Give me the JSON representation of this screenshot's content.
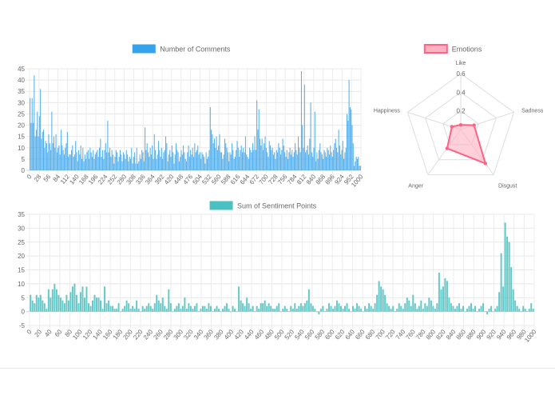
{
  "chart_data": [
    {
      "type": "bar",
      "legend": {
        "label": "Number of Comments",
        "color": "#36a2eb",
        "fill": "#9ad0f5",
        "placement": "top-center"
      },
      "x_ticks": [
        "0",
        "28",
        "56",
        "84",
        "112",
        "140",
        "168",
        "196",
        "224",
        "252",
        "280",
        "308",
        "336",
        "364",
        "392",
        "420",
        "448",
        "476",
        "504",
        "532",
        "560",
        "588",
        "616",
        "644",
        "672",
        "700",
        "728",
        "756",
        "784",
        "812",
        "840",
        "868",
        "896",
        "924",
        "952",
        "1000"
      ],
      "ylim": [
        0,
        45
      ],
      "y_ticks": [
        "0",
        "5",
        "10",
        "15",
        "20",
        "25",
        "30",
        "35",
        "40",
        "45"
      ],
      "grid": true,
      "values": [
        32,
        21,
        32,
        21,
        42,
        15,
        18,
        26,
        15,
        24,
        36,
        14,
        17,
        18,
        10,
        13,
        12,
        8,
        16,
        12,
        9,
        26,
        12,
        15,
        10,
        16,
        8,
        10,
        11,
        7,
        18,
        11,
        9,
        7,
        10,
        12,
        17,
        6,
        7,
        7,
        9,
        11,
        6,
        7,
        13,
        8,
        4,
        9,
        7,
        11,
        5,
        10,
        4,
        7,
        5,
        8,
        9,
        5,
        10,
        8,
        6,
        9,
        5,
        7,
        8,
        9,
        6,
        10,
        14,
        6,
        9,
        5,
        9,
        12,
        8,
        22,
        8,
        10,
        6,
        9,
        7,
        3,
        6,
        9,
        8,
        4,
        6,
        9,
        7,
        4,
        8,
        7,
        5,
        9,
        7,
        4,
        6,
        5,
        10,
        3,
        6,
        8,
        3,
        10,
        3,
        4,
        7,
        5,
        9,
        8,
        4,
        19,
        9,
        12,
        8,
        6,
        10,
        7,
        11,
        5,
        16,
        9,
        5,
        7,
        13,
        9,
        6,
        10,
        5,
        8,
        9,
        15,
        12,
        4,
        7,
        9,
        6,
        11,
        8,
        3,
        7,
        12,
        9,
        8,
        4,
        6,
        9,
        7,
        11,
        8,
        5,
        4,
        8,
        11,
        6,
        9,
        7,
        10,
        6,
        12,
        8,
        9,
        11,
        7,
        8,
        5,
        8,
        7,
        6,
        3,
        8,
        5,
        6,
        9,
        28,
        18,
        16,
        12,
        14,
        10,
        15,
        9,
        11,
        16,
        8,
        8,
        5,
        7,
        14,
        12,
        10,
        8,
        4,
        8,
        7,
        12,
        9,
        5,
        6,
        9,
        13,
        10,
        6,
        9,
        11,
        8,
        10,
        8,
        15,
        7,
        6,
        5,
        10,
        9,
        8,
        12,
        9,
        15,
        9,
        31,
        18,
        27,
        14,
        11,
        14,
        9,
        12,
        15,
        10,
        8,
        6,
        13,
        11,
        9,
        10,
        7,
        8,
        5,
        9,
        8,
        12,
        10,
        7,
        9,
        14,
        11,
        8,
        6,
        9,
        5,
        8,
        10,
        7,
        9,
        6,
        8,
        12,
        9,
        7,
        15,
        10,
        8,
        44,
        20,
        10,
        38,
        8,
        9,
        11,
        7,
        14,
        30,
        8,
        6,
        10,
        26,
        4,
        8,
        5,
        9,
        12,
        8,
        7,
        5,
        9,
        8,
        6,
        10,
        9,
        7,
        11,
        8,
        6,
        9,
        12,
        14,
        10,
        8,
        18,
        11,
        7,
        9,
        13,
        5,
        8,
        10,
        25,
        22,
        40,
        28,
        27,
        20,
        12,
        2,
        4,
        6,
        5,
        6,
        2,
        2
      ]
    },
    {
      "type": "radar",
      "legend": {
        "label": "Emotions",
        "color": "#ff6384",
        "fill": "#ffb1c1",
        "placement": "top-center"
      },
      "axes": [
        "Like",
        "Sadness",
        "Disgust",
        "Anger",
        "Happiness"
      ],
      "values": [
        0.05,
        0.15,
        0.45,
        0.25,
        0.1
      ],
      "rmax": 0.6,
      "r_ticks": [
        "0.2",
        "0.4",
        "0.6"
      ]
    },
    {
      "type": "bar",
      "legend": {
        "label": "Sum of Sentiment Points",
        "color": "#4bc0c0",
        "fill": "#a5dfdf",
        "placement": "top-center"
      },
      "x_ticks": [
        "0",
        "20",
        "40",
        "60",
        "80",
        "100",
        "120",
        "140",
        "160",
        "180",
        "200",
        "220",
        "240",
        "260",
        "280",
        "300",
        "320",
        "340",
        "360",
        "380",
        "400",
        "420",
        "440",
        "460",
        "480",
        "500",
        "520",
        "540",
        "560",
        "580",
        "600",
        "620",
        "640",
        "660",
        "680",
        "700",
        "720",
        "740",
        "760",
        "780",
        "800",
        "820",
        "840",
        "860",
        "880",
        "900",
        "920",
        "940",
        "960",
        "980",
        "1000"
      ],
      "ylim": [
        -5,
        35
      ],
      "y_ticks": [
        "-5",
        "0",
        "5",
        "10",
        "15",
        "20",
        "25",
        "30",
        "35"
      ],
      "grid": true,
      "values": [
        6,
        4,
        3,
        6,
        5,
        6,
        4,
        3,
        1,
        8,
        5,
        8,
        10,
        8,
        6,
        5,
        4,
        3,
        6,
        4,
        7,
        9,
        10,
        6,
        3,
        7,
        9,
        5,
        9,
        3,
        2,
        4,
        6,
        5,
        5,
        4,
        1,
        9,
        3,
        4,
        2,
        2,
        1,
        1,
        3,
        0,
        1,
        2,
        4,
        3,
        1,
        2,
        1,
        4,
        1,
        0,
        2,
        1,
        2,
        3,
        2,
        1,
        3,
        6,
        4,
        3,
        5,
        2,
        1,
        8,
        3,
        0,
        1,
        2,
        3,
        1,
        2,
        5,
        1,
        3,
        2,
        1,
        2,
        3,
        0,
        1,
        2,
        2,
        1,
        3,
        2,
        0,
        1,
        2,
        1,
        0,
        1,
        2,
        3,
        1,
        0,
        2,
        1,
        0,
        9,
        4,
        3,
        2,
        5,
        3,
        1,
        2,
        0,
        2,
        1,
        3,
        3,
        4,
        2,
        3,
        2,
        1,
        1,
        2,
        3,
        0,
        1,
        2,
        1,
        0,
        2,
        1,
        3,
        1,
        2,
        3,
        2,
        3,
        4,
        8,
        3,
        2,
        1,
        0,
        -1,
        1,
        2,
        0,
        1,
        3,
        2,
        1,
        2,
        4,
        3,
        2,
        1,
        2,
        3,
        1,
        0,
        2,
        1,
        3,
        2,
        1,
        0,
        2,
        1,
        3,
        2,
        1,
        3,
        6,
        11,
        9,
        8,
        6,
        3,
        2,
        1,
        2,
        0,
        1,
        3,
        2,
        1,
        3,
        5,
        4,
        2,
        6,
        3,
        1,
        2,
        4,
        1,
        3,
        2,
        5,
        4,
        2,
        1,
        3,
        14,
        8,
        9,
        12,
        11,
        5,
        3,
        2,
        1,
        2,
        3,
        1,
        2,
        0,
        1,
        2,
        3,
        1,
        2,
        0,
        1,
        2,
        3,
        0,
        -1,
        1,
        2,
        0,
        1,
        2,
        7,
        21,
        9,
        32,
        27,
        25,
        16,
        8,
        4,
        2,
        1,
        0,
        2,
        1,
        0,
        1,
        3,
        1
      ]
    }
  ]
}
